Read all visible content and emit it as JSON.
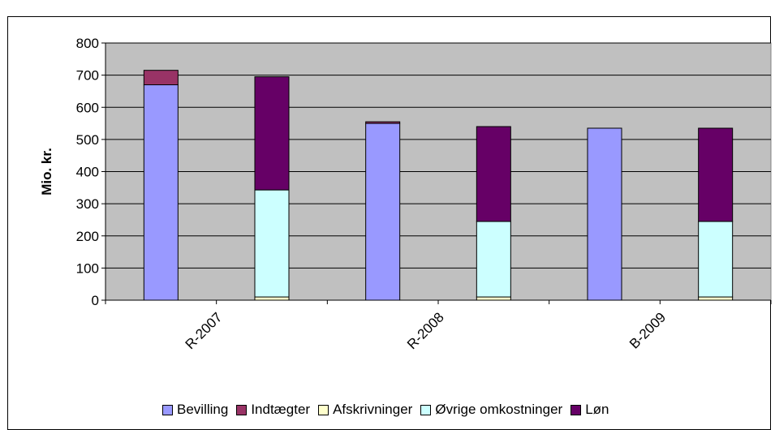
{
  "heading": "",
  "chart_data": {
    "type": "bar",
    "stacked": true,
    "title": "",
    "ylabel": "Mio. kr.",
    "xlabel": "",
    "ylim": [
      0,
      800
    ],
    "yticks": [
      0,
      100,
      200,
      300,
      400,
      500,
      600,
      700,
      800
    ],
    "grid": true,
    "legend_position": "bottom",
    "groups": [
      "R-2007",
      "R-2008",
      "B-2009"
    ],
    "series": [
      {
        "name": "Bevilling",
        "color": "#9999ff",
        "stack": "left",
        "values": [
          670,
          550,
          535
        ]
      },
      {
        "name": "Indtægter",
        "color": "#993366",
        "stack": "left",
        "values": [
          45,
          5,
          0
        ]
      },
      {
        "name": "Afskrivninger",
        "color": "#ffffcc",
        "stack": "right",
        "values": [
          10,
          10,
          10
        ]
      },
      {
        "name": "Øvrige omkostninger",
        "color": "#ccffff",
        "stack": "right",
        "values": [
          333,
          235,
          235
        ]
      },
      {
        "name": "Løn",
        "color": "#660066",
        "stack": "right",
        "values": [
          352,
          295,
          290
        ]
      }
    ]
  }
}
